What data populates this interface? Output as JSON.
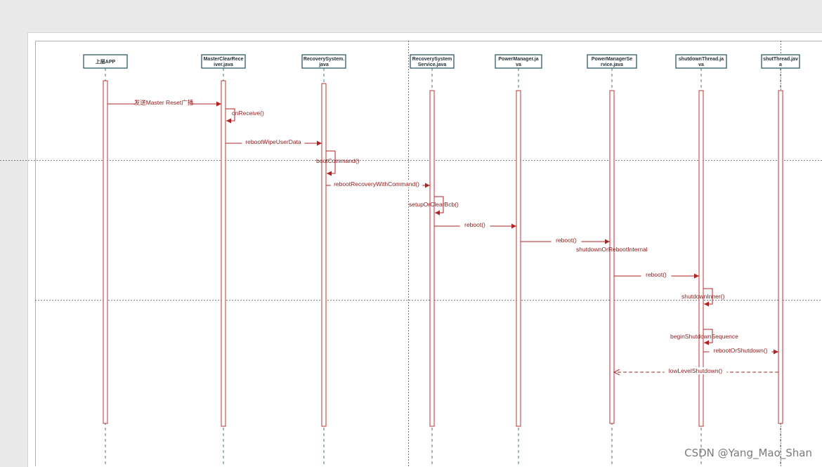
{
  "colors": {
    "accent": "#b22222",
    "actor_border": "#2e5e66",
    "lifeline": "#2e6a70"
  },
  "actors": [
    {
      "id": "app",
      "lines": [
        "上层APP"
      ]
    },
    {
      "id": "mcr",
      "lines": [
        "MasterClearRece",
        "iver.java"
      ]
    },
    {
      "id": "rs",
      "lines": [
        "RecoverySystem.",
        "java"
      ]
    },
    {
      "id": "rss",
      "lines": [
        "RecoverySystem",
        "Service.java"
      ]
    },
    {
      "id": "pm",
      "lines": [
        "PowerManager.ja",
        "va"
      ]
    },
    {
      "id": "pms",
      "lines": [
        "PowerManagerSe",
        "rvice.java"
      ]
    },
    {
      "id": "sdt",
      "lines": [
        "shutdownThread.ja",
        "va"
      ]
    },
    {
      "id": "st",
      "lines": [
        "shutThread.jav",
        "a"
      ]
    }
  ],
  "messages": [
    {
      "from": "app",
      "to": "mcr",
      "label": "发送Master Reset广播",
      "kind": "call"
    },
    {
      "from": "mcr",
      "to": "mcr",
      "label": "onReceive()",
      "kind": "self"
    },
    {
      "from": "mcr",
      "to": "rs",
      "label": "rebootWipeUserData",
      "kind": "call"
    },
    {
      "from": "rs",
      "to": "rs",
      "label": "bootCommand()",
      "kind": "self"
    },
    {
      "from": "rs",
      "to": "rss",
      "label": "rebootRecoveryWithCommand()",
      "kind": "call"
    },
    {
      "from": "rss",
      "to": "rss",
      "label": "setupOrClearBcb()",
      "kind": "self"
    },
    {
      "from": "rss",
      "to": "pm",
      "label": "reboot()",
      "kind": "call"
    },
    {
      "from": "pm",
      "to": "pms",
      "label": "reboot()",
      "kind": "call"
    },
    {
      "from": "pms",
      "to": "pms",
      "label": "shutdownOrRebootInternal",
      "kind": "note"
    },
    {
      "from": "pms",
      "to": "sdt",
      "label": "reboot()",
      "kind": "call"
    },
    {
      "from": "sdt",
      "to": "sdt",
      "label": "shutdownInner()",
      "kind": "self"
    },
    {
      "from": "sdt",
      "to": "sdt",
      "label": "beginShutdownSequence",
      "kind": "self"
    },
    {
      "from": "sdt",
      "to": "st",
      "label": "rebootOrShutdown()",
      "kind": "call"
    },
    {
      "from": "st",
      "to": "pms",
      "label": "lowLevelShutdown()",
      "kind": "return"
    }
  ],
  "watermark": "CSDN @Yang_Mao_Shan"
}
